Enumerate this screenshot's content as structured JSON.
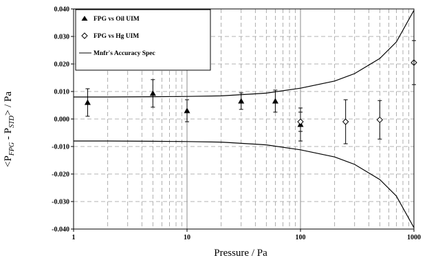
{
  "chart_data": {
    "type": "scatter",
    "x_scale": "log",
    "xlabel": "Pressure / Pa",
    "ylabel_parts": {
      "prefix": "<P",
      "sub1": "FPG",
      "mid": " - P",
      "sub2": "STD",
      "suffix": "> / Pa"
    },
    "xlim": [
      1,
      1000
    ],
    "ylim": [
      -0.04,
      0.04
    ],
    "x_ticks": [
      {
        "value": 1,
        "label": "1"
      },
      {
        "value": 10,
        "label": "10"
      },
      {
        "value": 100,
        "label": "100"
      },
      {
        "value": 1000,
        "label": "1000"
      }
    ],
    "y_ticks": [
      {
        "value": 0.04,
        "label": "0.040"
      },
      {
        "value": 0.03,
        "label": "0.030"
      },
      {
        "value": 0.02,
        "label": "0.020"
      },
      {
        "value": 0.01,
        "label": "0.010"
      },
      {
        "value": 0.0,
        "label": "0.000"
      },
      {
        "value": -0.01,
        "label": "-0.010"
      },
      {
        "value": -0.02,
        "label": "-0.020"
      },
      {
        "value": -0.03,
        "label": "-0.030"
      },
      {
        "value": -0.04,
        "label": "-0.040"
      }
    ],
    "grid": true,
    "legend_position": "top-left",
    "series": [
      {
        "name": "FPG vs Oil UIM",
        "marker": "filled-triangle",
        "points": [
          {
            "x": 1.33,
            "y": 0.006,
            "err": 0.005
          },
          {
            "x": 5.0,
            "y": 0.0093,
            "err": 0.005
          },
          {
            "x": 10.0,
            "y": 0.003,
            "err": 0.004
          },
          {
            "x": 30.0,
            "y": 0.0065,
            "err": 0.003
          },
          {
            "x": 60.0,
            "y": 0.0065,
            "err": 0.004
          },
          {
            "x": 100.0,
            "y": -0.002,
            "err": 0.006
          }
        ]
      },
      {
        "name": "FPG vs Hg UIM",
        "marker": "open-diamond",
        "points": [
          {
            "x": 100.0,
            "y": -0.001,
            "err": 0.0035
          },
          {
            "x": 250.0,
            "y": -0.001,
            "err": 0.008
          },
          {
            "x": 500.0,
            "y": -0.0003,
            "err": 0.007
          },
          {
            "x": 1000.0,
            "y": 0.0205,
            "err": 0.008
          }
        ]
      },
      {
        "name": "Mnfr's Accuracy Spec",
        "marker": "line",
        "points": [
          {
            "x": 1,
            "y": 0.008
          },
          {
            "x": 2,
            "y": 0.008
          },
          {
            "x": 5,
            "y": 0.0081
          },
          {
            "x": 10,
            "y": 0.0082
          },
          {
            "x": 20,
            "y": 0.0084
          },
          {
            "x": 50,
            "y": 0.0094
          },
          {
            "x": 100,
            "y": 0.0112
          },
          {
            "x": 200,
            "y": 0.0138
          },
          {
            "x": 300,
            "y": 0.0165
          },
          {
            "x": 500,
            "y": 0.022
          },
          {
            "x": 700,
            "y": 0.028
          },
          {
            "x": 1000,
            "y": 0.0395
          }
        ],
        "mirror_negative": true
      }
    ]
  }
}
